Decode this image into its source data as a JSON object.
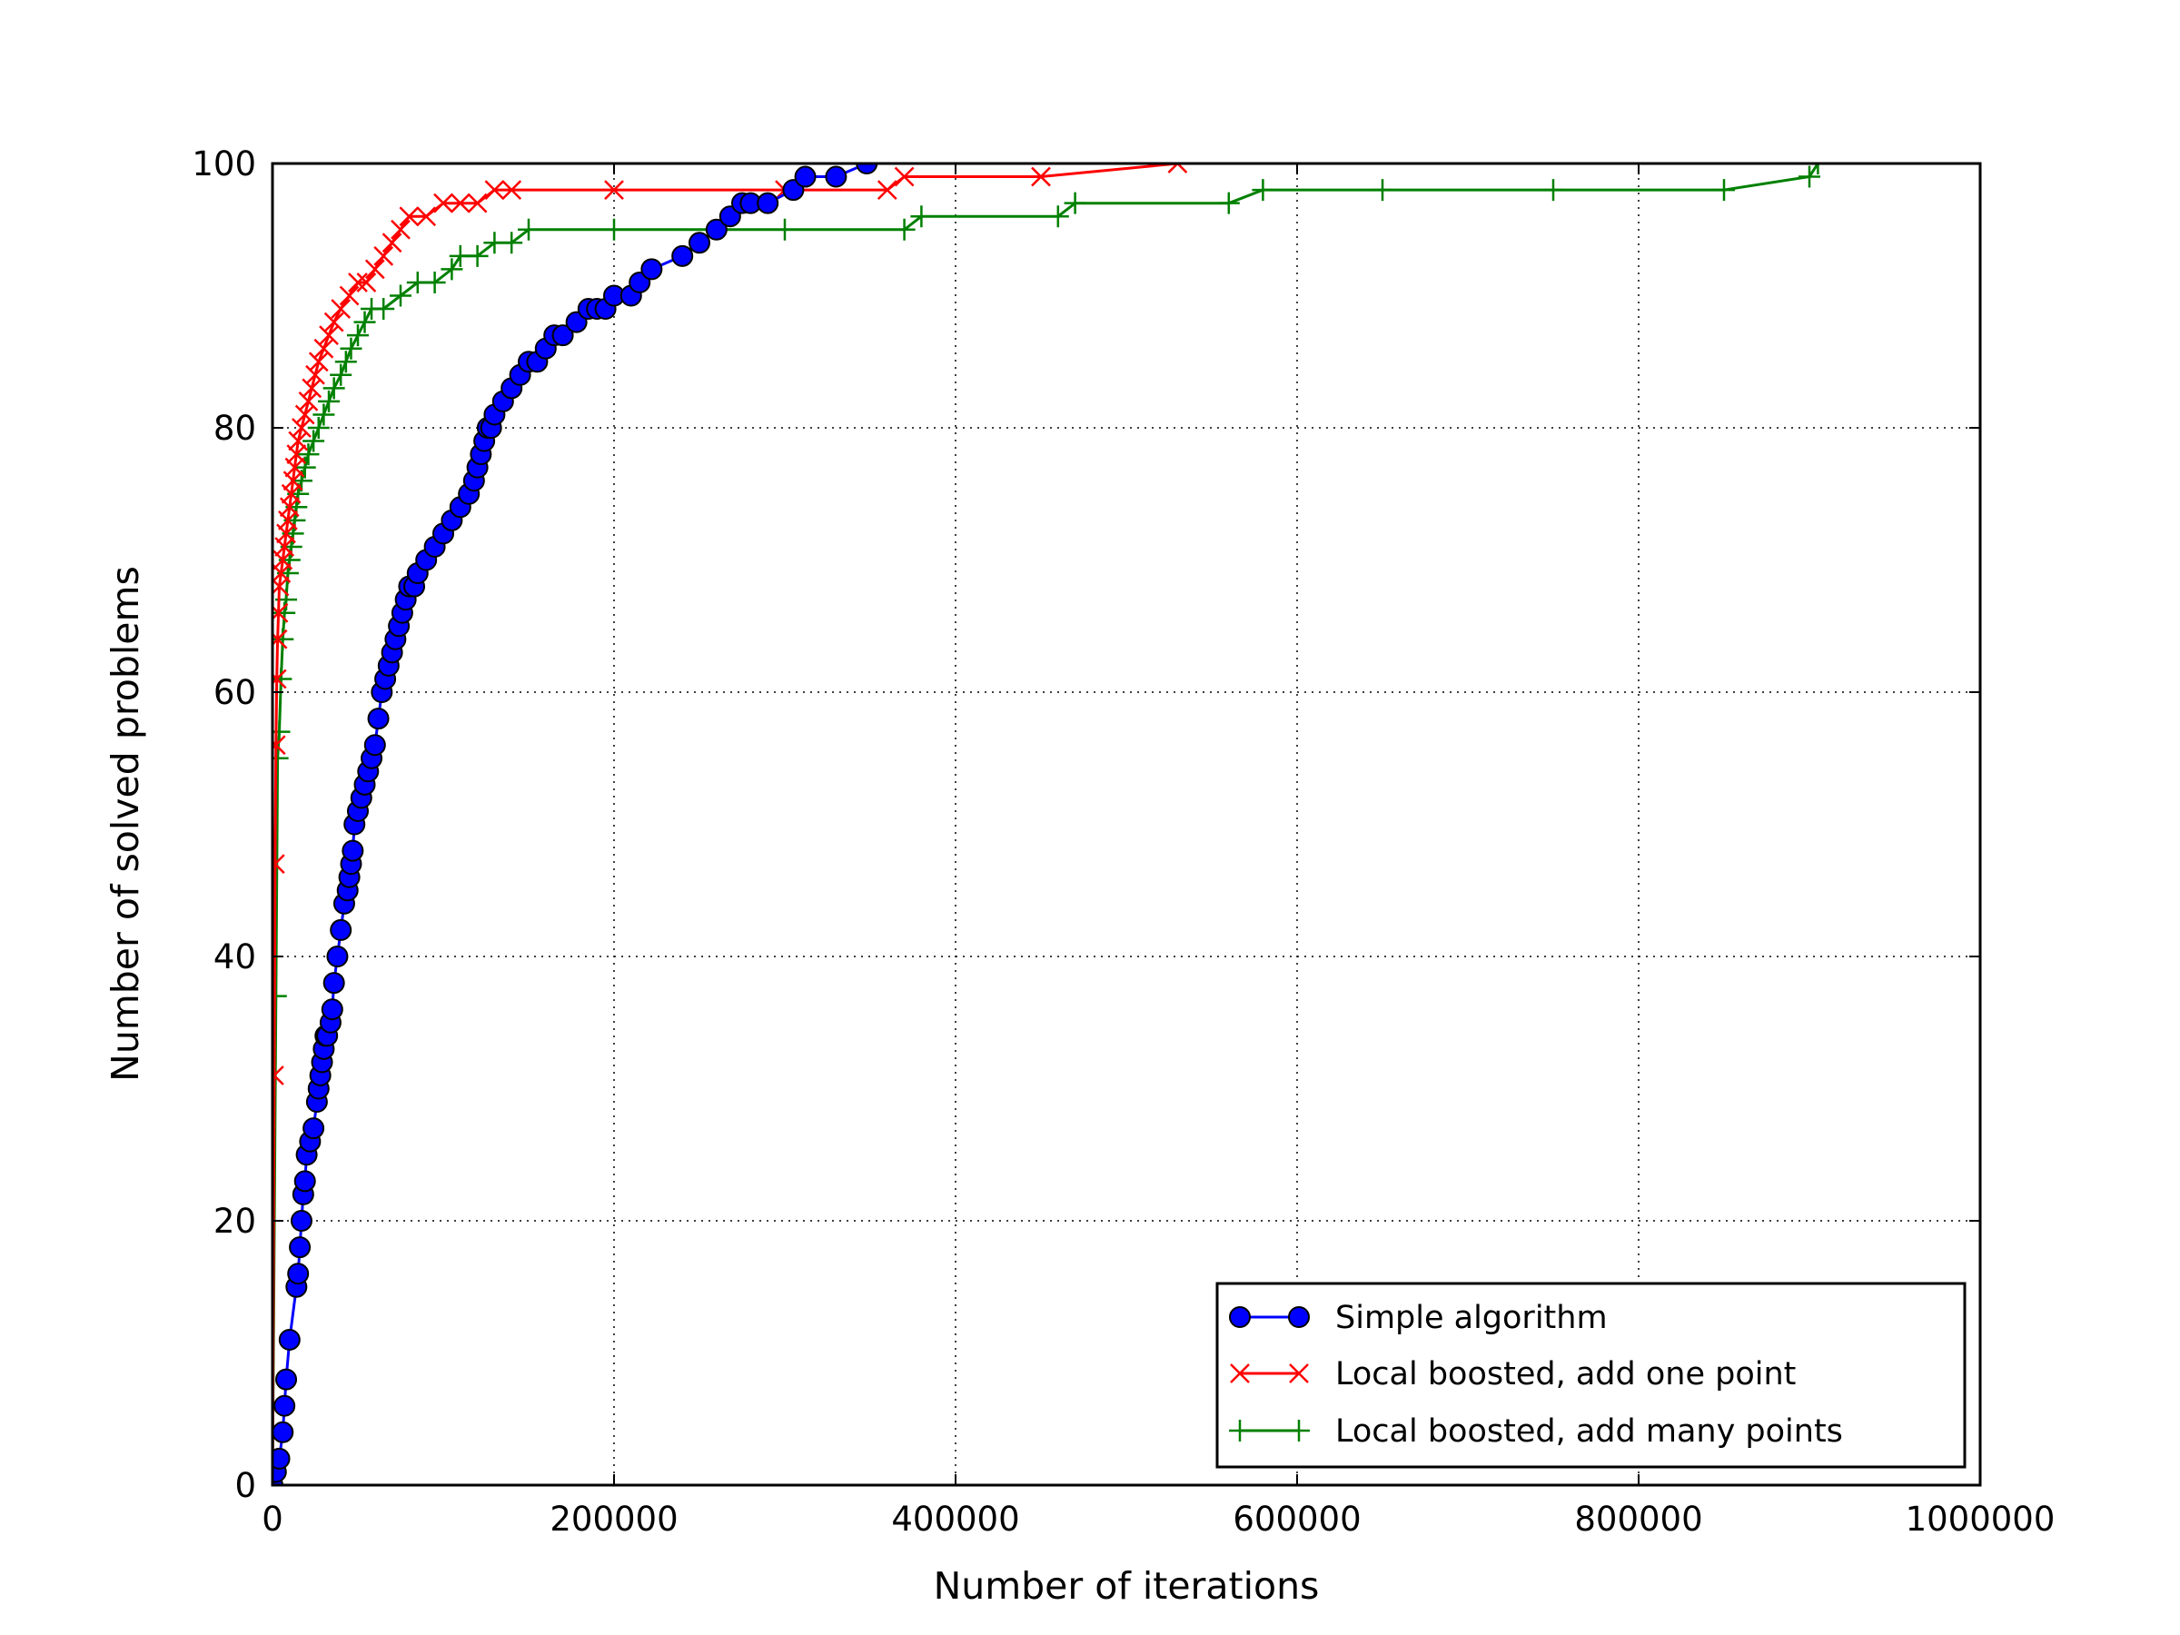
{
  "chart_data": {
    "type": "line",
    "title": "",
    "xlabel": "Number of iterations",
    "ylabel": "Number of solved problems",
    "xlim": [
      0,
      1000000
    ],
    "ylim": [
      0,
      100
    ],
    "xticks": [
      "0",
      "200000",
      "400000",
      "600000",
      "800000",
      "1000000"
    ],
    "yticks": [
      "0",
      "20",
      "40",
      "60",
      "80",
      "100"
    ],
    "grid": true,
    "legend_position": "lower-right",
    "series": [
      {
        "name": "Simple algorithm",
        "color": "#0000ff",
        "marker": "circle",
        "x": [
          0,
          2000,
          4000,
          6000,
          7000,
          8000,
          10000,
          14000,
          15000,
          16000,
          17000,
          18000,
          19000,
          20000,
          22000,
          24000,
          26000,
          27000,
          28000,
          29000,
          30000,
          31000,
          32000,
          34000,
          35000,
          36000,
          38000,
          40000,
          42000,
          44000,
          45000,
          46000,
          47000,
          48000,
          50000,
          52000,
          54000,
          56000,
          58000,
          60000,
          62000,
          64000,
          66000,
          68000,
          70000,
          72000,
          74000,
          76000,
          78000,
          80000,
          83000,
          85000,
          90000,
          95000,
          100000,
          105000,
          110000,
          115000,
          118000,
          120000,
          122000,
          124000,
          126000,
          128000,
          130000,
          135000,
          140000,
          145000,
          150000,
          155000,
          160000,
          165000,
          170000,
          178000,
          185000,
          190000,
          195000,
          200000,
          210000,
          215000,
          222000,
          240000,
          250000,
          260000,
          268000,
          275000,
          280000,
          290000,
          305000,
          312000,
          330000,
          348000
        ],
        "y": [
          0,
          1,
          2,
          4,
          6,
          8,
          11,
          15,
          16,
          18,
          20,
          22,
          23,
          25,
          26,
          27,
          29,
          30,
          31,
          32,
          33,
          34,
          34,
          35,
          36,
          38,
          40,
          42,
          44,
          45,
          46,
          47,
          48,
          50,
          51,
          52,
          53,
          54,
          55,
          56,
          58,
          60,
          61,
          62,
          63,
          64,
          65,
          66,
          67,
          68,
          68,
          69,
          70,
          71,
          72,
          73,
          74,
          75,
          76,
          77,
          78,
          79,
          80,
          80,
          81,
          82,
          83,
          84,
          85,
          85,
          86,
          87,
          87,
          88,
          89,
          89,
          89,
          90,
          90,
          91,
          92,
          93,
          94,
          95,
          96,
          97,
          97,
          97,
          98,
          99,
          99,
          100
        ]
      },
      {
        "name": "Local boosted, add one point",
        "color": "#ff0000",
        "marker": "x",
        "x": [
          0,
          1000,
          1500,
          2000,
          2500,
          3000,
          3500,
          4000,
          5000,
          6000,
          7000,
          8000,
          9000,
          10000,
          11000,
          12000,
          13000,
          14000,
          15000,
          17000,
          19000,
          21000,
          23000,
          25000,
          27000,
          30000,
          33000,
          36000,
          40000,
          45000,
          50000,
          55000,
          60000,
          65000,
          70000,
          75000,
          80000,
          90000,
          100000,
          110000,
          120000,
          130000,
          140000,
          200000,
          300000,
          360000,
          370000,
          450000,
          530000
        ],
        "y": [
          0,
          31,
          47,
          56,
          61,
          64,
          66,
          68,
          69,
          70,
          71,
          72,
          73,
          74,
          75,
          76,
          77,
          78,
          79,
          80,
          81,
          82,
          83,
          84,
          85,
          86,
          87,
          88,
          89,
          90,
          91,
          91,
          92,
          93,
          94,
          95,
          96,
          96,
          97,
          97,
          97,
          98,
          98,
          98,
          98,
          98,
          99,
          99,
          100
        ]
      },
      {
        "name": "Local boosted, add many points",
        "color": "#008000",
        "marker": "plus",
        "x": [
          0,
          2000,
          3000,
          4000,
          5000,
          6000,
          7000,
          8000,
          9000,
          10000,
          11000,
          12000,
          13000,
          14000,
          15000,
          17000,
          19000,
          21000,
          24000,
          27000,
          30000,
          33000,
          36000,
          40000,
          43000,
          46000,
          50000,
          54000,
          58000,
          65000,
          75000,
          85000,
          95000,
          105000,
          110000,
          120000,
          130000,
          140000,
          150000,
          200000,
          300000,
          370000,
          380000,
          460000,
          470000,
          560000,
          580000,
          650000,
          750000,
          850000,
          900000,
          905000
        ],
        "y": [
          0,
          37,
          55,
          57,
          61,
          64,
          66,
          67,
          69,
          70,
          71,
          72,
          73,
          74,
          75,
          76,
          77,
          78,
          79,
          80,
          81,
          82,
          83,
          84,
          85,
          86,
          87,
          88,
          89,
          89,
          90,
          91,
          91,
          92,
          93,
          93,
          94,
          94,
          95,
          95,
          95,
          95,
          96,
          96,
          97,
          97,
          98,
          98,
          98,
          98,
          99,
          100
        ]
      }
    ]
  }
}
